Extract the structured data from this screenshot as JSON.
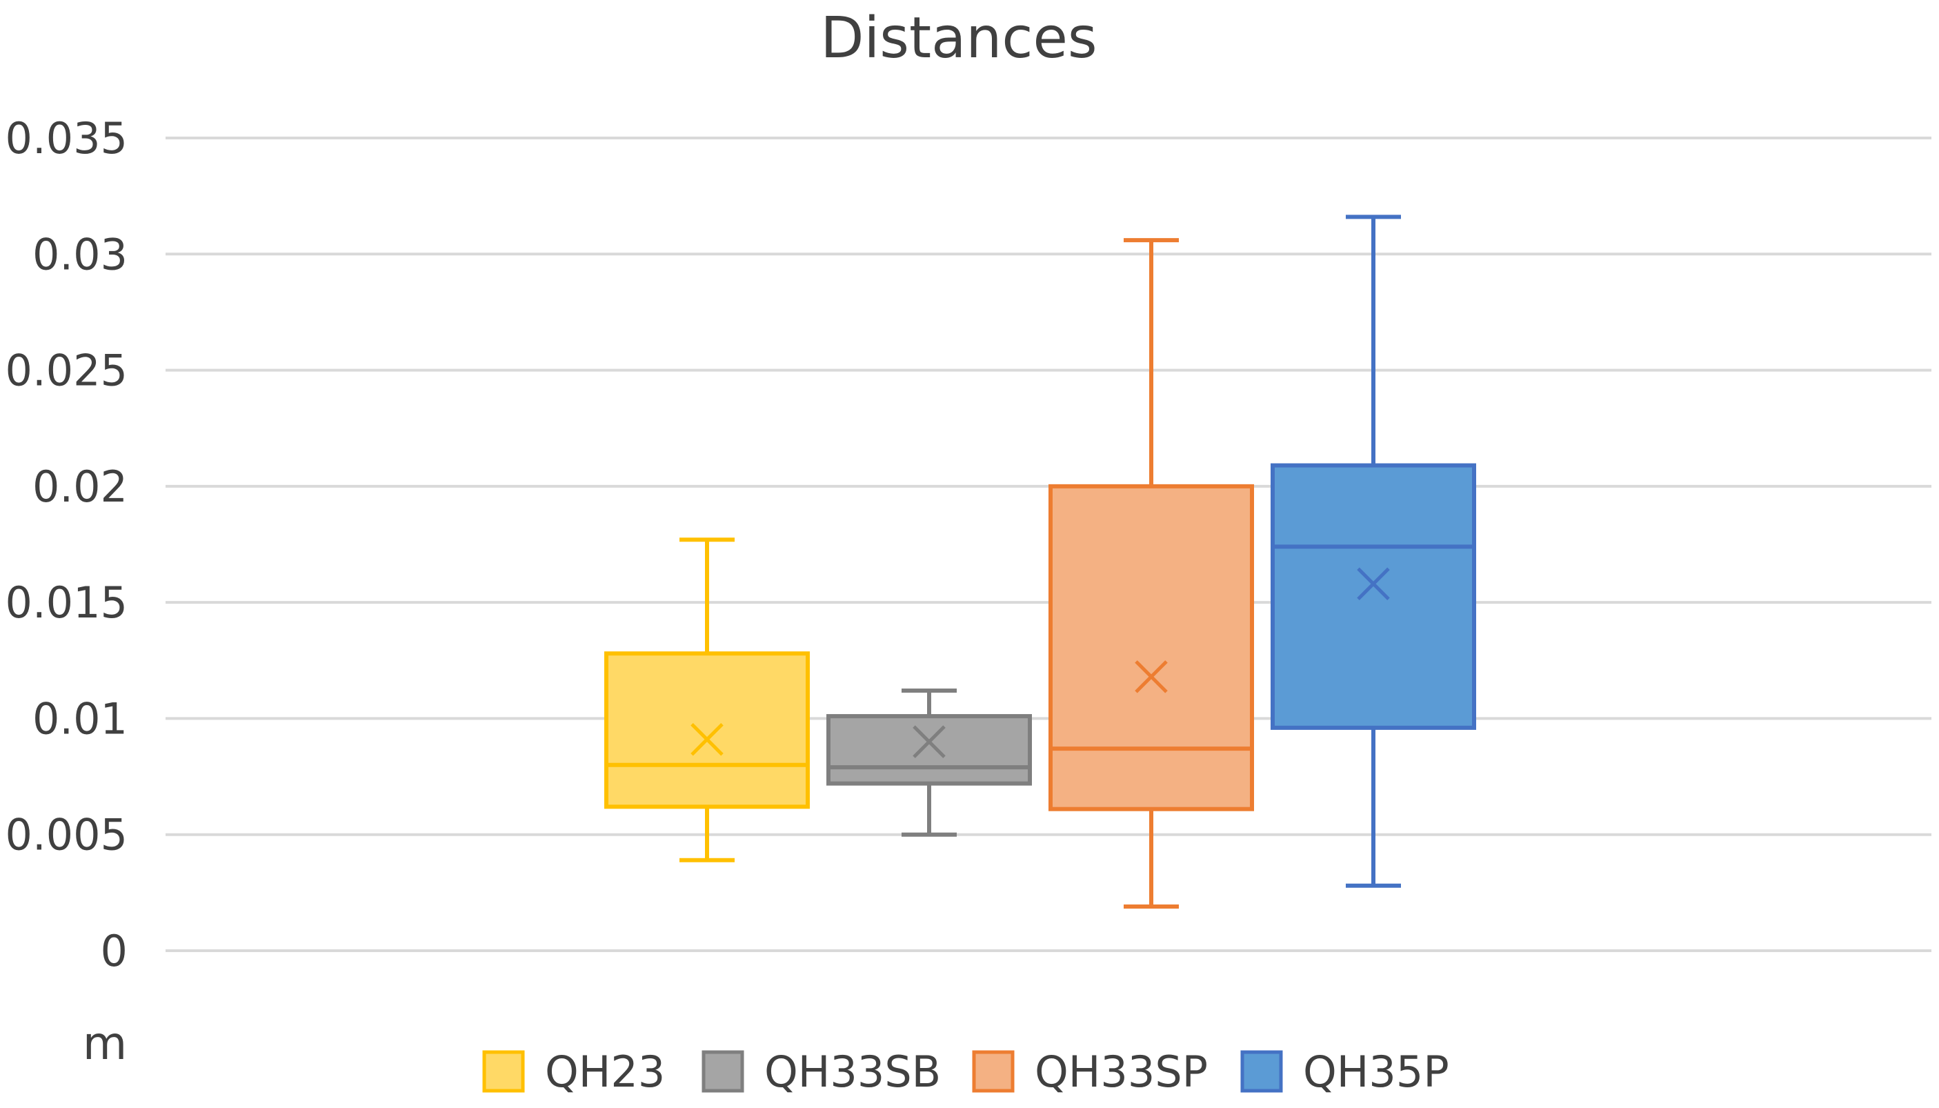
{
  "chart_data": {
    "type": "box",
    "title": "Distances",
    "xlabel": "",
    "ylabel": "m",
    "ylim": [
      0,
      0.035
    ],
    "yticks": [
      "0",
      "0.005",
      "0.01",
      "0.015",
      "0.02",
      "0.025",
      "0.03",
      "0.035"
    ],
    "ytick_values": [
      0,
      0.005,
      0.01,
      0.015,
      0.02,
      0.025,
      0.03,
      0.035
    ],
    "grid": true,
    "legend_position": "bottom",
    "series": [
      {
        "name": "QH23",
        "min": 0.0039,
        "q1": 0.0062,
        "median": 0.008,
        "mean": 0.0091,
        "q3": 0.0128,
        "max": 0.0177,
        "stroke": "#FFC000",
        "fill": "#FFD966"
      },
      {
        "name": "QH33SB",
        "min": 0.005,
        "q1": 0.0072,
        "median": 0.0079,
        "mean": 0.009,
        "q3": 0.0101,
        "max": 0.0112,
        "stroke": "#7F7F7F",
        "fill": "#A5A5A5"
      },
      {
        "name": "QH33SP",
        "min": 0.0019,
        "q1": 0.0061,
        "median": 0.0087,
        "mean": 0.0118,
        "q3": 0.02,
        "max": 0.0306,
        "stroke": "#ED7D31",
        "fill": "#F4B183"
      },
      {
        "name": "QH35P",
        "min": 0.0028,
        "q1": 0.0096,
        "median": 0.0174,
        "mean": 0.0158,
        "q3": 0.0209,
        "max": 0.0316,
        "stroke": "#4472C4",
        "fill": "#5B9BD5"
      }
    ]
  }
}
